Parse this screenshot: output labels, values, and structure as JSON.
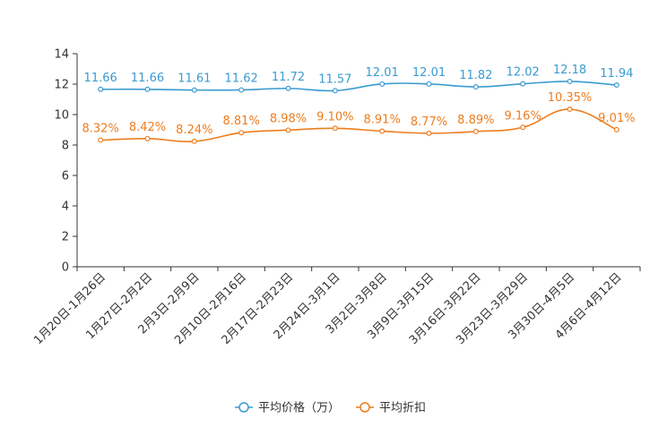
{
  "chart_data": {
    "type": "line",
    "title": "",
    "xlabel": "",
    "ylabel": "",
    "ylim": [
      0,
      14
    ],
    "yticks": [
      0,
      2,
      4,
      6,
      8,
      10,
      12,
      14
    ],
    "grid": false,
    "legend_position": "bottom-center",
    "categories": [
      "1月20日-1月26日",
      "1月27日-2月2日",
      "2月3日-2月9日",
      "2月10日-2月16日",
      "2月17日-2月23日",
      "2月24日-3月1日",
      "3月2日-3月8日",
      "3月9日-3月15日",
      "3月16日-3月22日",
      "3月23日-3月29日",
      "3月30日-4月5日",
      "4月6日-4月12日"
    ],
    "series": [
      {
        "name": "平均价格（万）",
        "color": "#3a9bd0",
        "values": [
          11.66,
          11.66,
          11.61,
          11.62,
          11.72,
          11.57,
          12.01,
          12.01,
          11.82,
          12.02,
          12.18,
          11.94
        ],
        "labels": [
          "11.66",
          "11.66",
          "11.61",
          "11.62",
          "11.72",
          "11.57",
          "12.01",
          "12.01",
          "11.82",
          "12.02",
          "12.18",
          "11.94"
        ]
      },
      {
        "name": "平均折扣",
        "color": "#ee7d1e",
        "values": [
          8.32,
          8.42,
          8.24,
          8.81,
          8.98,
          9.1,
          8.91,
          8.77,
          8.89,
          9.16,
          10.35,
          9.01
        ],
        "labels": [
          "8.32%",
          "8.42%",
          "8.24%",
          "8.81%",
          "8.98%",
          "9.10%",
          "8.91%",
          "8.77%",
          "8.89%",
          "9.16%",
          "10.35%",
          "9.01%"
        ]
      }
    ]
  }
}
